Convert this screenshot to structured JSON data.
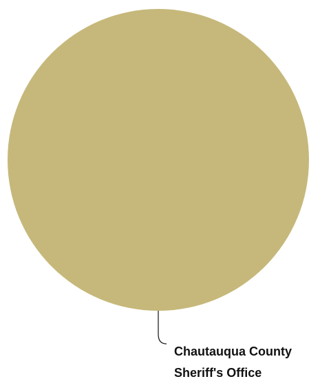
{
  "chart_data": {
    "type": "pie",
    "slices": [
      {
        "label_lines": [
          "Chautauqua County",
          "Sheriff's Office"
        ],
        "value": 100,
        "color": "#c6b87a"
      }
    ],
    "legend": "none",
    "leader_line_color": "#111111"
  }
}
